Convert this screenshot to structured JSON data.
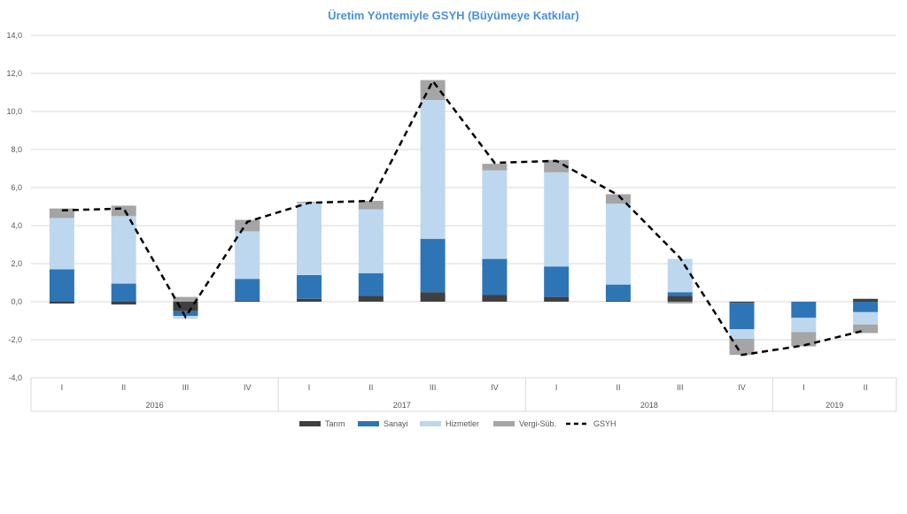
{
  "chart_data": {
    "type": "bar",
    "title": "Üretim Yöntemiyle GSYH (Büyümeye Katkılar)",
    "xlabel": "",
    "ylabel": "",
    "ylim": [
      -4,
      14
    ],
    "y_ticks": [
      "-4,0",
      "-2,0",
      "0,0",
      "2,0",
      "4,0",
      "6,0",
      "8,0",
      "10,0",
      "12,0",
      "14,0"
    ],
    "y_tick_values": [
      -4,
      -2,
      0,
      2,
      4,
      6,
      8,
      10,
      12,
      14
    ],
    "grid": true,
    "legend_position": "bottom",
    "categories": [
      "I",
      "II",
      "III",
      "IV",
      "I",
      "II",
      "III",
      "IV",
      "I",
      "II",
      "III",
      "IV",
      "I",
      "II"
    ],
    "year_groups": [
      {
        "label": "2016",
        "count": 4
      },
      {
        "label": "2017",
        "count": 4
      },
      {
        "label": "2018",
        "count": 4
      },
      {
        "label": "2019",
        "count": 2
      }
    ],
    "stacked": true,
    "series": [
      {
        "name": "Tarım",
        "color": "#404040",
        "values": [
          -0.1,
          -0.15,
          -0.5,
          0.05,
          0.15,
          0.3,
          0.5,
          0.35,
          0.25,
          0.05,
          0.3,
          -0.05,
          0.0,
          0.15
        ]
      },
      {
        "name": "Sanayi",
        "color": "#2e75b6",
        "values": [
          1.7,
          0.95,
          -0.25,
          1.15,
          1.25,
          1.2,
          2.8,
          1.9,
          1.6,
          0.85,
          0.2,
          -1.4,
          -0.85,
          -0.55
        ]
      },
      {
        "name": "Hizmetler",
        "color": "#bdd7ee",
        "values": [
          2.7,
          3.55,
          -0.15,
          2.5,
          3.8,
          3.35,
          7.3,
          4.65,
          4.95,
          4.25,
          1.75,
          -0.5,
          -0.75,
          -0.65
        ]
      },
      {
        "name": "Vergi-Süb.",
        "color": "#a5a5a5",
        "values": [
          0.5,
          0.55,
          0.25,
          0.6,
          0.05,
          0.45,
          1.05,
          0.35,
          0.65,
          0.5,
          -0.1,
          -0.85,
          -0.75,
          -0.45
        ]
      }
    ],
    "line": {
      "name": "GSYH",
      "color": "#000000",
      "style": "dashed",
      "values": [
        4.8,
        4.9,
        -0.8,
        4.2,
        5.2,
        5.3,
        11.6,
        7.3,
        7.4,
        5.6,
        2.3,
        -2.8,
        -2.3,
        -1.5
      ]
    }
  }
}
